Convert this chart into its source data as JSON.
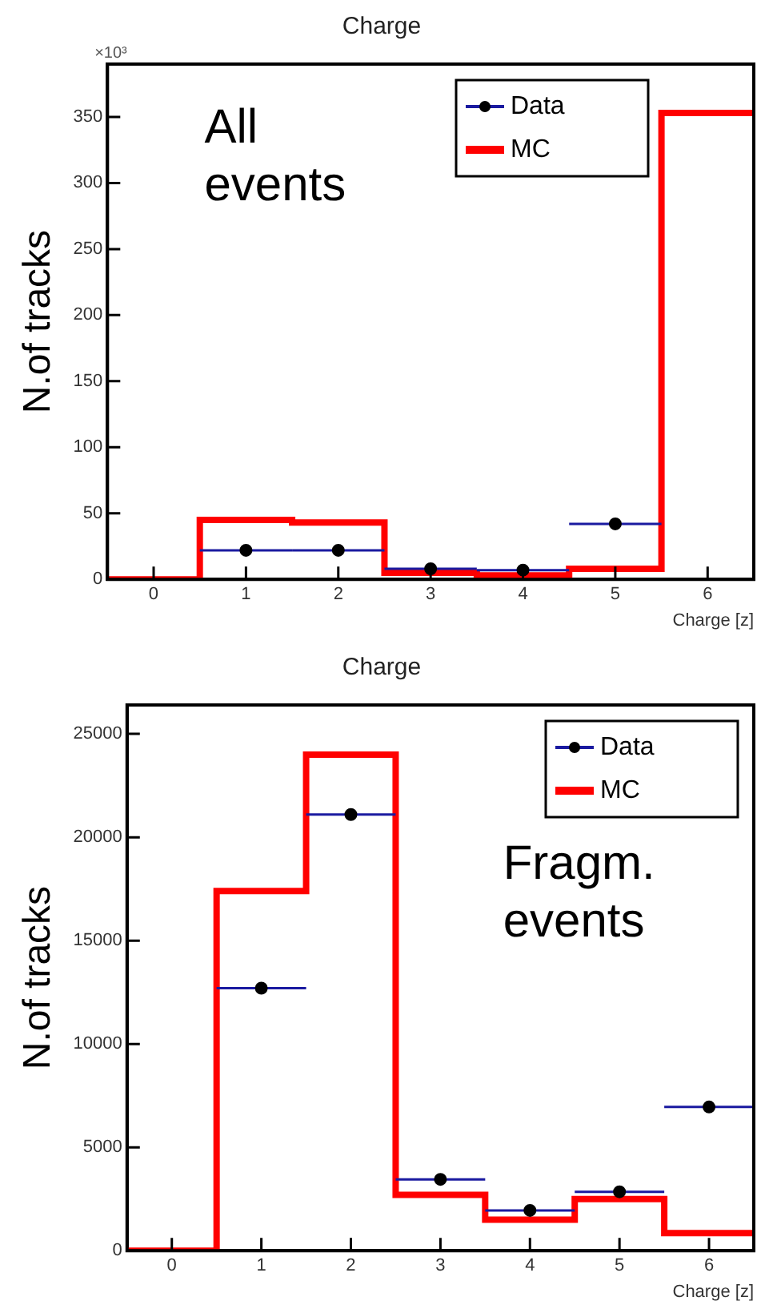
{
  "chart_data": [
    {
      "type": "histogram",
      "title": "Charge",
      "xlabel": "Charge [z]",
      "ylabel": "N.of tracks",
      "bins": [
        -0.5,
        0.5,
        1.5,
        2.5,
        3.5,
        4.5,
        5.5,
        6.5
      ],
      "xlim": [
        -0.5,
        6.5
      ],
      "xticks": [
        0,
        1,
        2,
        3,
        4,
        5,
        6
      ],
      "ylim": [
        0,
        390
      ],
      "yticks": [
        0,
        50,
        100,
        150,
        200,
        250,
        300,
        350
      ],
      "legend": "top right",
      "grid": false,
      "annotations": [
        "×10³",
        "All\nevents"
      ],
      "series": [
        {
          "name": "Data",
          "type": "scatter",
          "color": "#000000",
          "x": [
            1,
            2,
            3,
            4,
            5
          ],
          "values": [
            22,
            22,
            8,
            7,
            42
          ],
          "xerrors": [
            0.5,
            0.5,
            0.5,
            0.5,
            0.5
          ],
          "marker": "circle"
        },
        {
          "name": "MC",
          "color": "#ff0000",
          "values": [
            0,
            45,
            43,
            5,
            3,
            8,
            353
          ]
        }
      ]
    },
    {
      "type": "histogram",
      "title": "Charge",
      "xlabel": "Charge [z]",
      "ylabel": "N.of tracks",
      "bins": [
        -0.5,
        0.5,
        1.5,
        2.5,
        3.5,
        4.5,
        5.5,
        6.5
      ],
      "xlim": [
        -0.5,
        6.5
      ],
      "xticks": [
        0,
        1,
        2,
        3,
        4,
        5,
        6
      ],
      "ylim": [
        0,
        26400
      ],
      "yticks": [
        0,
        5000,
        10000,
        15000,
        20000,
        25000
      ],
      "legend": "top right",
      "grid": false,
      "annotations": [
        "Fragm.\nevents"
      ],
      "series": [
        {
          "name": "Data",
          "type": "scatter",
          "color": "#000000",
          "x": [
            1,
            2,
            3,
            4,
            5,
            6
          ],
          "values": [
            12700,
            21100,
            3450,
            1950,
            2850,
            6950
          ],
          "xerrors": [
            0.5,
            0.5,
            0.5,
            0.5,
            0.5,
            0.5
          ],
          "marker": "circle"
        },
        {
          "name": "MC",
          "color": "#ff0000",
          "values": [
            0,
            17400,
            24000,
            2700,
            1500,
            2500,
            850
          ]
        }
      ]
    }
  ]
}
